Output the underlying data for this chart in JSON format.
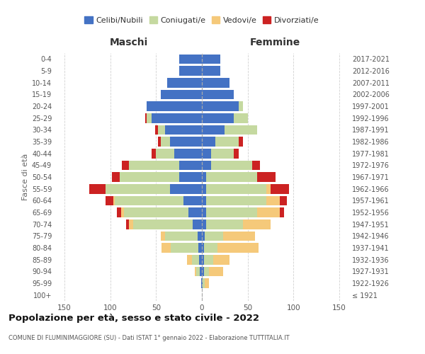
{
  "age_groups": [
    "100+",
    "95-99",
    "90-94",
    "85-89",
    "80-84",
    "75-79",
    "70-74",
    "65-69",
    "60-64",
    "55-59",
    "50-54",
    "45-49",
    "40-44",
    "35-39",
    "30-34",
    "25-29",
    "20-24",
    "15-19",
    "10-14",
    "5-9",
    "0-4"
  ],
  "birth_years": [
    "≤ 1921",
    "1922-1926",
    "1927-1931",
    "1932-1936",
    "1937-1941",
    "1942-1946",
    "1947-1951",
    "1952-1956",
    "1957-1961",
    "1962-1966",
    "1967-1971",
    "1972-1976",
    "1977-1981",
    "1982-1986",
    "1987-1991",
    "1992-1996",
    "1997-2001",
    "2002-2006",
    "2007-2011",
    "2012-2016",
    "2017-2021"
  ],
  "males": {
    "celibi": [
      0,
      1,
      2,
      3,
      4,
      5,
      10,
      15,
      20,
      35,
      25,
      25,
      30,
      35,
      40,
      55,
      60,
      45,
      38,
      25,
      25
    ],
    "coniugati": [
      0,
      0,
      4,
      8,
      30,
      35,
      65,
      70,
      75,
      70,
      65,
      55,
      20,
      10,
      8,
      5,
      0,
      0,
      0,
      0,
      0
    ],
    "vedovi": [
      0,
      0,
      2,
      5,
      10,
      5,
      5,
      3,
      2,
      0,
      0,
      0,
      0,
      0,
      0,
      0,
      0,
      0,
      0,
      0,
      0
    ],
    "divorziati": [
      0,
      0,
      0,
      0,
      0,
      0,
      3,
      5,
      8,
      18,
      8,
      7,
      5,
      3,
      3,
      2,
      0,
      0,
      0,
      0,
      0
    ]
  },
  "females": {
    "nubili": [
      0,
      1,
      2,
      2,
      2,
      3,
      5,
      5,
      5,
      5,
      5,
      10,
      10,
      15,
      25,
      35,
      40,
      35,
      30,
      20,
      20
    ],
    "coniugate": [
      0,
      2,
      6,
      10,
      15,
      20,
      40,
      55,
      65,
      65,
      55,
      45,
      25,
      25,
      35,
      15,
      5,
      0,
      0,
      0,
      0
    ],
    "vedove": [
      0,
      5,
      15,
      18,
      45,
      35,
      30,
      25,
      15,
      5,
      0,
      0,
      0,
      0,
      0,
      0,
      0,
      0,
      0,
      0,
      0
    ],
    "divorziate": [
      0,
      0,
      0,
      0,
      0,
      0,
      0,
      5,
      8,
      20,
      20,
      8,
      5,
      5,
      0,
      0,
      0,
      0,
      0,
      0,
      0
    ]
  },
  "colors": {
    "celibi": "#4472c4",
    "coniugati": "#c5d9a0",
    "vedovi": "#f5c97a",
    "divorziati": "#cc2222"
  },
  "xlim": 160,
  "title": "Popolazione per età, sesso e stato civile - 2022",
  "subtitle": "COMUNE DI FLUMINIMAGGIORE (SU) - Dati ISTAT 1° gennaio 2022 - Elaborazione TUTTITALIA.IT",
  "ylabel_left": "Fasce di età",
  "legend_labels": [
    "Celibi/Nubili",
    "Coniugati/e",
    "Vedovi/e",
    "Divorziati/e"
  ],
  "maschi_label": "Maschi",
  "femmine_label": "Femmine"
}
